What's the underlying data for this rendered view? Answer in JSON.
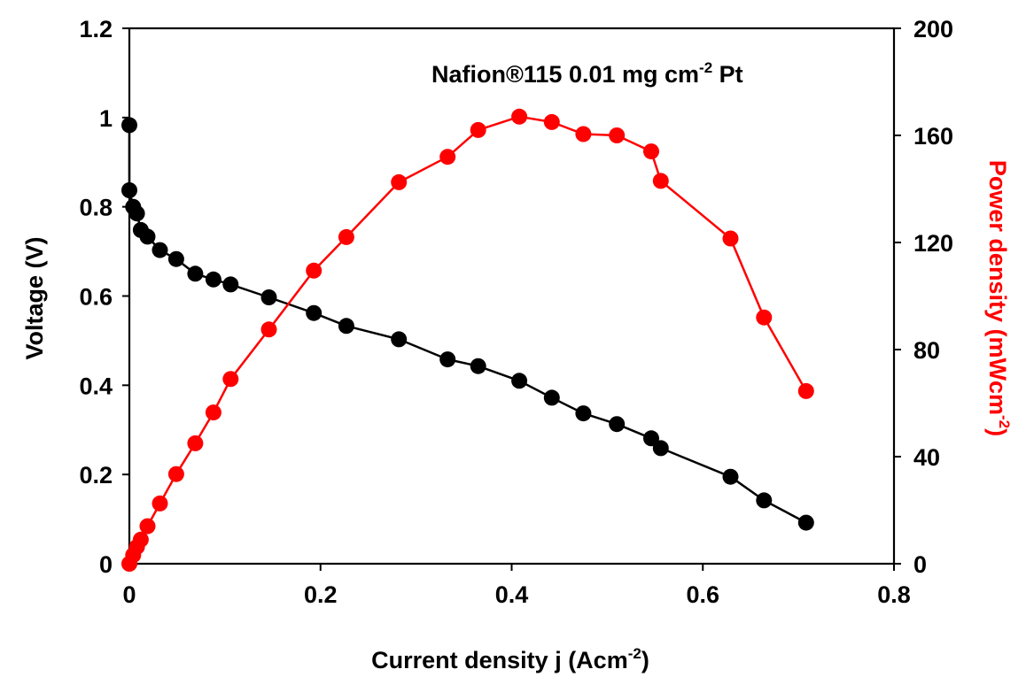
{
  "chart_data": {
    "type": "line",
    "annotation": {
      "prefix": "Nafion®115  0.01 mg cm",
      "sup": "-2",
      "suffix": " Pt"
    },
    "x_axis": {
      "label_prefix": "Current density j (Acm",
      "label_sup": "-2",
      "label_suffix": ")",
      "range": [
        0,
        0.8
      ],
      "ticks": [
        0,
        0.2,
        0.4,
        0.6,
        0.8
      ],
      "tick_labels": [
        "0",
        "0.2",
        "0.4",
        "0.6",
        "0.8"
      ]
    },
    "y_axis_left": {
      "label": "Voltage (V)",
      "range": [
        0,
        1.2
      ],
      "ticks": [
        0,
        0.2,
        0.4,
        0.6,
        0.8,
        1.0,
        1.2
      ],
      "tick_labels": [
        "0",
        "0.2",
        "0.4",
        "0.6",
        "0.8",
        "1",
        "1.2"
      ]
    },
    "y_axis_right": {
      "label_prefix": "Power density (mWcm",
      "label_sup": "-2",
      "label_suffix": ")",
      "range": [
        0,
        200
      ],
      "ticks": [
        0,
        40,
        80,
        120,
        160,
        200
      ],
      "tick_labels": [
        "0",
        "40",
        "80",
        "120",
        "160",
        "200"
      ],
      "color": "#ff0000"
    },
    "grid": false,
    "series": [
      {
        "axis": "left",
        "color": "#000000",
        "x": [
          0.0,
          0.0,
          0.004,
          0.008,
          0.012,
          0.019,
          0.032,
          0.049,
          0.069,
          0.088,
          0.106,
          0.146,
          0.193,
          0.227,
          0.282,
          0.333,
          0.365,
          0.408,
          0.442,
          0.475,
          0.51,
          0.546,
          0.556,
          0.629,
          0.664,
          0.708
        ],
        "y": [
          0.983,
          0.837,
          0.8,
          0.785,
          0.748,
          0.733,
          0.703,
          0.683,
          0.65,
          0.637,
          0.626,
          0.597,
          0.562,
          0.533,
          0.503,
          0.458,
          0.443,
          0.41,
          0.372,
          0.337,
          0.313,
          0.281,
          0.259,
          0.195,
          0.142,
          0.092
        ]
      },
      {
        "axis": "right",
        "color": "#ff0000",
        "x": [
          0.0,
          0.004,
          0.008,
          0.012,
          0.019,
          0.032,
          0.049,
          0.069,
          0.088,
          0.106,
          0.146,
          0.193,
          0.227,
          0.282,
          0.333,
          0.365,
          0.408,
          0.442,
          0.475,
          0.51,
          0.546,
          0.556,
          0.629,
          0.664,
          0.708
        ],
        "y": [
          0.0,
          3.2,
          6.3,
          9.0,
          14.0,
          22.5,
          33.5,
          45.0,
          56.5,
          69.0,
          87.5,
          109.5,
          122.0,
          142.5,
          152.0,
          162.0,
          167.0,
          165.0,
          160.5,
          160.0,
          154.0,
          143.0,
          121.5,
          92.0,
          64.5
        ]
      }
    ]
  }
}
